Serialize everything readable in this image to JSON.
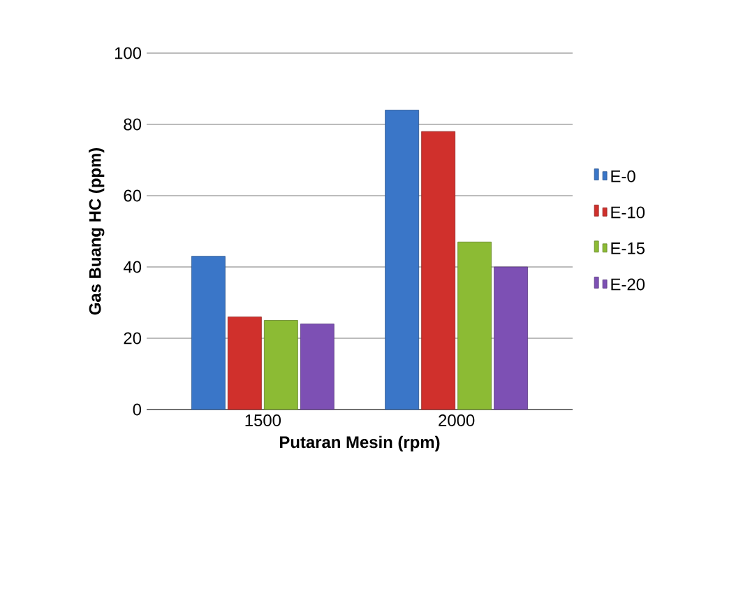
{
  "chart_data": {
    "type": "bar",
    "xlabel": "Putaran Mesin (rpm)",
    "ylabel": "Gas Buang HC (ppm)",
    "categories": [
      "1500",
      "2000"
    ],
    "series": [
      {
        "name": "E-0",
        "color": "#3a76c8",
        "values": [
          43,
          84
        ]
      },
      {
        "name": "E-10",
        "color": "#d0302c",
        "values": [
          26,
          78
        ]
      },
      {
        "name": "E-15",
        "color": "#8cbb34",
        "values": [
          25,
          47
        ]
      },
      {
        "name": "E-20",
        "color": "#7d50b4",
        "values": [
          24,
          40
        ]
      }
    ],
    "ylim": [
      0,
      100
    ],
    "yticks": [
      0,
      20,
      40,
      60,
      80,
      100
    ],
    "grid": "y",
    "legend": "right"
  }
}
